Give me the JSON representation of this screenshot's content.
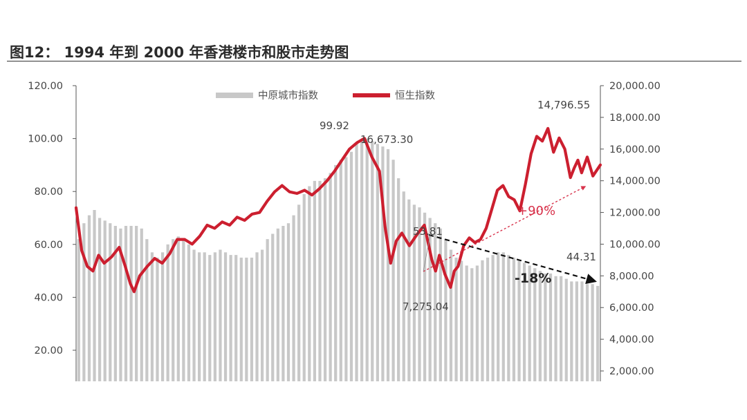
{
  "figure": {
    "title": "图12：   1994 年到 2000 年香港楼市和股市走势图"
  },
  "chart_data": {
    "type": "bar+line",
    "legend": [
      "中原城市指数",
      "恒生指数"
    ],
    "left_axis": {
      "ticks": [
        "20.00",
        "40.00",
        "60.00",
        "80.00",
        "100.00",
        "120.00"
      ],
      "ylim": [
        0,
        120
      ]
    },
    "right_axis": {
      "ticks": [
        "2,000.00",
        "4,000.00",
        "6,000.00",
        "8,000.00",
        "10,000.00",
        "12,000.00",
        "14,000.00",
        "16,000.00",
        "18,000.00",
        "20,000.00"
      ],
      "ylim": [
        0,
        20000
      ]
    },
    "bar_series": {
      "name": "中原城市指数",
      "color": "#c8c8c8",
      "values": [
        62,
        68,
        71,
        73,
        70,
        69,
        68,
        67,
        66,
        67,
        67,
        67,
        66,
        62,
        57,
        55,
        57,
        60,
        62,
        63,
        62,
        60,
        58,
        57,
        57,
        56,
        57,
        58,
        57,
        56,
        56,
        55,
        55,
        55,
        57,
        58,
        62,
        64,
        66,
        67,
        68,
        71,
        75,
        79,
        82,
        84,
        84,
        85,
        87,
        90,
        92,
        93,
        95,
        98,
        99.92,
        100,
        99,
        98,
        97,
        96,
        92,
        85,
        80,
        77,
        75,
        74,
        72,
        70,
        68,
        66,
        62,
        58,
        55,
        53.81,
        52,
        51,
        52,
        54,
        55,
        56,
        57,
        57,
        56,
        55,
        54,
        53,
        52,
        51,
        50,
        49,
        49,
        48,
        48,
        47,
        46,
        46,
        46,
        45,
        45,
        44.31
      ]
    },
    "line_series": {
      "name": "恒生指数",
      "color": "#cc1f2f",
      "points": [
        [
          0,
          12300
        ],
        [
          3,
          9600
        ],
        [
          6,
          8600
        ],
        [
          9,
          8300
        ],
        [
          12,
          9300
        ],
        [
          15,
          8800
        ],
        [
          19,
          9200
        ],
        [
          23,
          9800
        ],
        [
          26,
          8700
        ],
        [
          29,
          7500
        ],
        [
          31,
          7000
        ],
        [
          34,
          8000
        ],
        [
          38,
          8600
        ],
        [
          42,
          9100
        ],
        [
          46,
          8800
        ],
        [
          50,
          9400
        ],
        [
          54,
          10300
        ],
        [
          58,
          10300
        ],
        [
          62,
          10000
        ],
        [
          66,
          10500
        ],
        [
          70,
          11200
        ],
        [
          74,
          11000
        ],
        [
          78,
          11400
        ],
        [
          82,
          11200
        ],
        [
          86,
          11700
        ],
        [
          90,
          11500
        ],
        [
          94,
          11900
        ],
        [
          98,
          12000
        ],
        [
          102,
          12700
        ],
        [
          106,
          13300
        ],
        [
          110,
          13700
        ],
        [
          114,
          13300
        ],
        [
          118,
          13200
        ],
        [
          122,
          13400
        ],
        [
          126,
          13100
        ],
        [
          130,
          13500
        ],
        [
          134,
          14000
        ],
        [
          138,
          14600
        ],
        [
          142,
          15300
        ],
        [
          146,
          16000
        ],
        [
          150,
          16400
        ],
        [
          154,
          16673.3
        ],
        [
          158,
          15500
        ],
        [
          162,
          14600
        ],
        [
          165,
          11100
        ],
        [
          168,
          8800
        ],
        [
          171,
          10200
        ],
        [
          174,
          10700
        ],
        [
          178,
          9900
        ],
        [
          182,
          10600
        ],
        [
          186,
          11200
        ],
        [
          190,
          9000
        ],
        [
          192,
          8300
        ],
        [
          194,
          9300
        ],
        [
          197,
          8100
        ],
        [
          200,
          7275.04
        ],
        [
          202,
          8300
        ],
        [
          204,
          8600
        ],
        [
          207,
          9900
        ],
        [
          210,
          10400
        ],
        [
          213,
          10100
        ],
        [
          216,
          10300
        ],
        [
          219,
          11000
        ],
        [
          222,
          12200
        ],
        [
          225,
          13400
        ],
        [
          228,
          13700
        ],
        [
          231,
          13000
        ],
        [
          234,
          12800
        ],
        [
          237,
          12100
        ],
        [
          240,
          13800
        ],
        [
          243,
          15700
        ],
        [
          246,
          16800
        ],
        [
          249,
          16500
        ],
        [
          252,
          17300
        ],
        [
          255,
          15800
        ],
        [
          258,
          16700
        ],
        [
          261,
          16000
        ],
        [
          264,
          14200
        ],
        [
          266,
          14796.55
        ],
        [
          268,
          15300
        ],
        [
          270,
          14500
        ],
        [
          273,
          15500
        ],
        [
          276,
          14300
        ],
        [
          280,
          15000
        ]
      ]
    },
    "annotations": {
      "peak_bar": "99.92",
      "peak_hsi": "16,673.30",
      "low_bar": "53.81",
      "low_hsi": "7,275.04",
      "high_hsi": "14,796.55",
      "end_bar": "44.31",
      "pct_up": "+90%",
      "pct_down": "-18%"
    }
  }
}
